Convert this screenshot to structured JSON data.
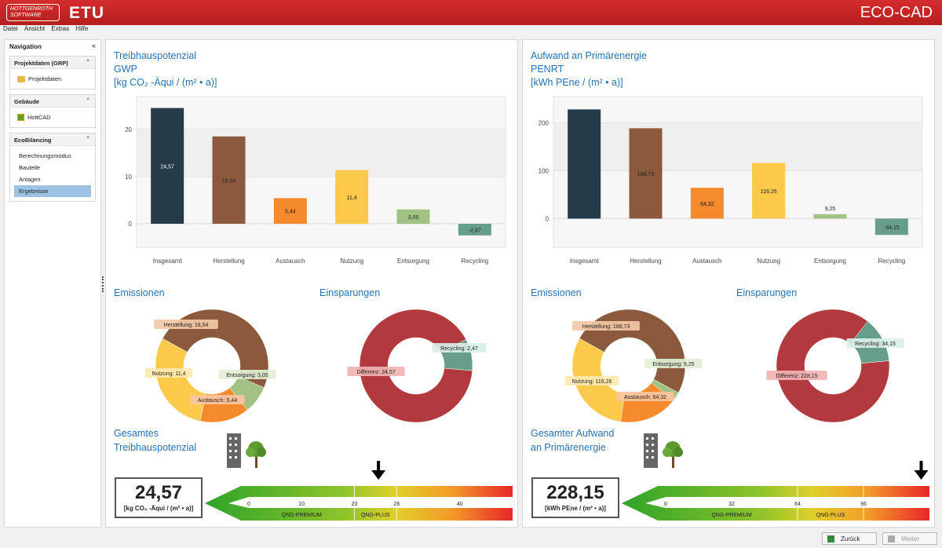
{
  "header": {
    "logo_line1": "HOTTGENROTH",
    "logo_line2": "SOFTWARE",
    "logo_etu": "ETU",
    "app_title": "ECO-CAD"
  },
  "menu": [
    "Datei",
    "Ansicht",
    "Extras",
    "Hilfe"
  ],
  "sidebar": {
    "title": "Navigation",
    "groups": [
      {
        "title": "Projektdaten (GRP)",
        "items": [
          "Projektdaten"
        ]
      },
      {
        "title": "Gebäude",
        "items": [
          "HottCAD"
        ]
      },
      {
        "title": "EcoBilancing",
        "items": [
          "Berechnungsmodus",
          "Bauteile",
          "Anlagen",
          "Ergebnisse"
        ]
      }
    ]
  },
  "left_panel": {
    "title_lines": [
      "Treibhauspotenzial",
      "GWP",
      "[kg CO₂ -Äqui / (m² • a)]"
    ],
    "emissions_title": "Emissionen",
    "savings_title": "Einsparungen",
    "total_title_lines": [
      "Gesamtes",
      "Treibhauspotenzial"
    ],
    "total_value": "24,57",
    "total_unit": "[kg CO₂ -Äqui / (m² • a)]",
    "emission_labels": [
      "Herstellung: 18,54",
      "Nutzung: 11,4",
      "Entsorgung: 3,05",
      "Austausch: 5,44"
    ],
    "savings_labels": [
      "Recycling: 2,47",
      "Differenz: 24,57"
    ],
    "scale_ticks": [
      "0",
      "10",
      "20",
      "28",
      "40"
    ],
    "scale_marker": 24.57,
    "scale_max": 50,
    "scale_bands": [
      "QNG-PREMIUM",
      "QNG-PLUS"
    ]
  },
  "right_panel": {
    "title_lines": [
      "Aufwand an Primärenergie",
      "PENRT",
      "[kWh PEne / (m² • a)]"
    ],
    "emissions_title": "Emissionen",
    "savings_title": "Einsparungen",
    "total_title_lines": [
      "Gesamter Aufwand",
      "an Primärenergie"
    ],
    "total_value": "228,15",
    "total_unit": "[kWh PEne / (m² • a)]",
    "emission_labels": [
      "Herstellung: 188,73",
      "Nutzung: 116,26",
      "Entsorgung: 9,25",
      "Austausch: 64,32"
    ],
    "savings_labels": [
      "Recycling: 34,15",
      "Differenz: 228,15"
    ],
    "scale_ticks": [
      "0",
      "32",
      "64",
      "96"
    ],
    "scale_marker": 124,
    "scale_max": 128,
    "scale_bands": [
      "QNG-PREMIUM",
      "QNG-PLUS"
    ]
  },
  "buttons": {
    "back": "Zurück",
    "next": "Weiter"
  },
  "chart_data": [
    {
      "type": "bar",
      "title": "Treibhauspotenzial GWP",
      "categories": [
        "Insgesamt",
        "Herstellung",
        "Austausch",
        "Nutzung",
        "Entsorgung",
        "Recycling"
      ],
      "values": [
        24.57,
        18.54,
        5.44,
        11.4,
        3.05,
        -2.47
      ],
      "labels": [
        "24,57",
        "18,54",
        "5,44",
        "11,4",
        "3,05",
        "-2,47"
      ],
      "colors": [
        "#253b4a",
        "#8b5a3c",
        "#f58a2c",
        "#fdc94a",
        "#a1c283",
        "#679e8a"
      ],
      "yticks": [
        "0",
        "10",
        "20"
      ],
      "ylim": [
        -5,
        27
      ]
    },
    {
      "type": "bar",
      "title": "Aufwand an Primärenergie PENRT",
      "categories": [
        "Insgesamt",
        "Herstellung",
        "Austausch",
        "Nutzung",
        "Entsorgung",
        "Recycling"
      ],
      "values": [
        228.15,
        188.73,
        64.32,
        116.26,
        9.25,
        -34.15
      ],
      "labels": [
        "",
        "188,73",
        "64,32",
        "116,26",
        "9,25",
        "-34,15"
      ],
      "colors": [
        "#253b4a",
        "#8b5a3c",
        "#f58a2c",
        "#fdc94a",
        "#a1c283",
        "#679e8a"
      ],
      "yticks": [
        "0",
        "100",
        "200"
      ],
      "ylim": [
        -60,
        255
      ]
    },
    {
      "type": "pie",
      "title": "Emissionen GWP",
      "categories": [
        "Herstellung",
        "Entsorgung",
        "Austausch",
        "Nutzung"
      ],
      "values": [
        18.54,
        3.05,
        5.44,
        11.4
      ],
      "colors": [
        "#8b5a3c",
        "#a1c283",
        "#f58a2c",
        "#fdc94a"
      ]
    },
    {
      "type": "pie",
      "title": "Einsparungen GWP",
      "categories": [
        "Recycling",
        "Differenz"
      ],
      "values": [
        2.47,
        24.57
      ],
      "colors": [
        "#679e8a",
        "#b23a3f"
      ]
    },
    {
      "type": "pie",
      "title": "Emissionen PENRT",
      "categories": [
        "Herstellung",
        "Entsorgung",
        "Austausch",
        "Nutzung"
      ],
      "values": [
        188.73,
        9.25,
        64.32,
        116.26
      ],
      "colors": [
        "#8b5a3c",
        "#a1c283",
        "#f58a2c",
        "#fdc94a"
      ]
    },
    {
      "type": "pie",
      "title": "Einsparungen PENRT",
      "categories": [
        "Recycling",
        "Differenz"
      ],
      "values": [
        34.15,
        228.15
      ],
      "colors": [
        "#679e8a",
        "#b23a3f"
      ]
    }
  ]
}
